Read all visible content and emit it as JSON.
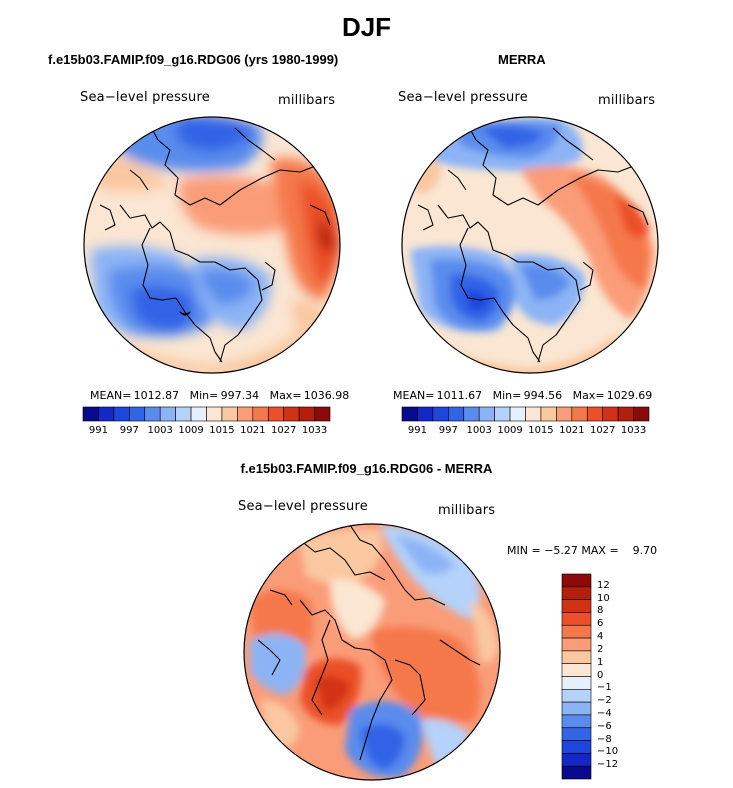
{
  "title": "DJF",
  "panels": [
    {
      "title": "f.e15b03.FAMIP.f09_g16.RDG06 (yrs 1980-1999)",
      "variable": "Sea−level pressure",
      "units": "millibars",
      "stats": {
        "mean_label": "MEAN=",
        "mean": "1012.87",
        "min_label": "Min=",
        "min": "997.34",
        "max_label": "Max=",
        "max": "1036.98"
      }
    },
    {
      "title": "MERRA",
      "variable": "Sea−level pressure",
      "units": "millibars",
      "stats": {
        "mean_label": "MEAN=",
        "mean": "1011.67",
        "min_label": "Min=",
        "min": "994.56",
        "max_label": "Max=",
        "max": "1029.69"
      }
    },
    {
      "title": "f.e15b03.FAMIP.f09_g16.RDG06 - MERRA",
      "variable": "Sea−level pressure",
      "units": "millibars",
      "stats": {
        "min_label": "MIN =",
        "min": "−5.27",
        "max_label": "MAX =",
        "max": "9.70"
      }
    }
  ],
  "colorbar_horizontal": {
    "colors": [
      "#0a0a8c",
      "#1428c8",
      "#1e46dc",
      "#3264e6",
      "#5a8ced",
      "#8cb4f5",
      "#b4d2fa",
      "#e6f0fa",
      "#fae6d2",
      "#fac8a0",
      "#fa9c78",
      "#f5784b",
      "#eb5028",
      "#d23214",
      "#b41e0a",
      "#8c0a0a"
    ],
    "tick_labels": [
      "991",
      "997",
      "1003",
      "1009",
      "1015",
      "1021",
      "1027",
      "1033"
    ]
  },
  "colorbar_vertical": {
    "colors_top_to_bottom": [
      "#8c0a0a",
      "#b41e0a",
      "#d23214",
      "#eb5028",
      "#f5784b",
      "#fa9c78",
      "#fac8a0",
      "#fae6d2",
      "#e6f0fa",
      "#b4d2fa",
      "#8cb4f5",
      "#5a8ced",
      "#3264e6",
      "#1e46dc",
      "#1428c8",
      "#0a0a8c"
    ],
    "tick_labels": [
      "12",
      "10",
      "8",
      "6",
      "4",
      "2",
      "1",
      "0",
      "−1",
      "−2",
      "−4",
      "−6",
      "−8",
      "−10",
      "−12"
    ]
  },
  "colors": {
    "coast": "#000000",
    "text": "#000000"
  }
}
